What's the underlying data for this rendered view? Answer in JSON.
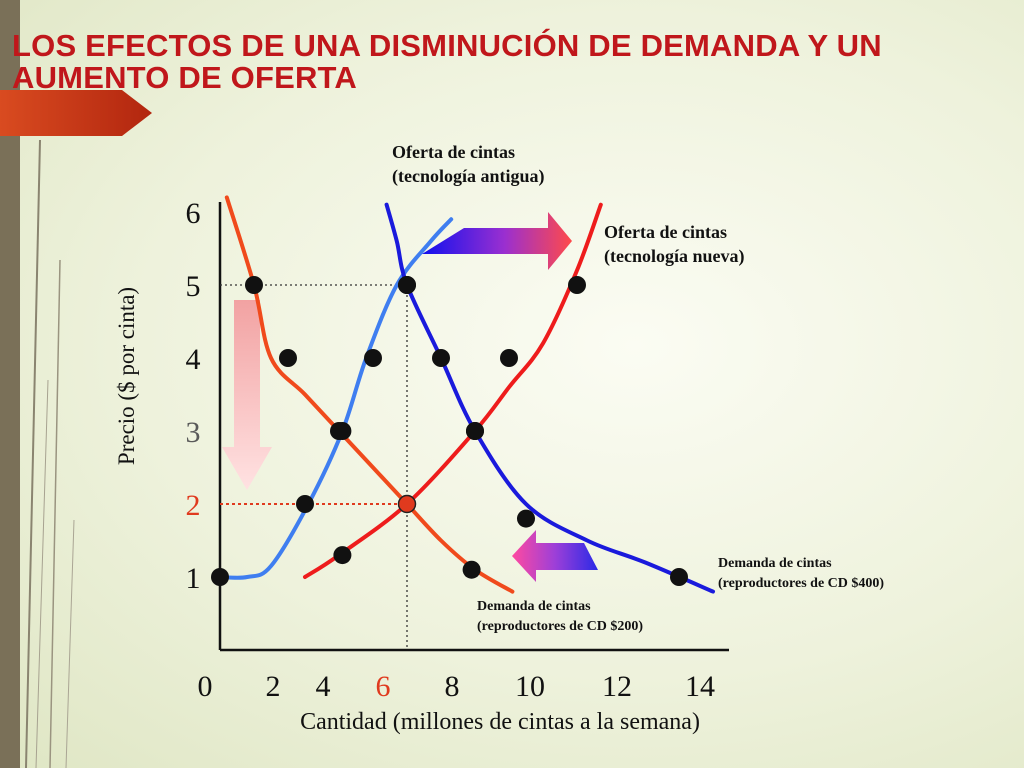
{
  "slide": {
    "title": "LOS EFECTOS DE UNA DISMINUCIÓN DE DEMANDA Y UN AUMENTO DE OFERTA"
  },
  "colors": {
    "title": "#c0171b",
    "frame": "#7a7058",
    "supply_old": "#3f7ef0",
    "supply_new": "#ee1c1c",
    "demand_old": "#1a1adc",
    "demand_new": "#f04a1c",
    "highlight": "#e03a1e",
    "points": "#111111"
  },
  "chart_data": {
    "type": "line",
    "xlabel": "Cantidad (millones de cintas a la semana)",
    "ylabel": "Precio ($ por cinta)",
    "x_ticks": [
      "0",
      "2",
      "4",
      "6",
      "8",
      "10",
      "12",
      "14"
    ],
    "y_ticks": [
      "1",
      "2",
      "3",
      "4",
      "5",
      "6"
    ],
    "highlight_x_tick": "6",
    "highlight_y_tick": "2",
    "muted_y_tick": "3",
    "xlim": [
      0,
      14
    ],
    "ylim": [
      0,
      6
    ],
    "series": [
      {
        "name": "Oferta de cintas (tecnología antigua)",
        "label_lines": [
          "Oferta de cintas",
          "(tecnología antigua)"
        ],
        "color": "#3f7ef0",
        "x": [
          0,
          0.8,
          1.5,
          2.6,
          3.6,
          4.3,
          5.2,
          6.2,
          6.8
        ],
        "y": [
          1,
          1,
          1.15,
          2,
          3,
          4,
          5,
          5.6,
          5.9
        ],
        "points_x": [
          0,
          2.5,
          3.6,
          4.5,
          5.5
        ],
        "points_y": [
          1,
          2,
          3,
          4,
          5
        ]
      },
      {
        "name": "Oferta de cintas (tecnología nueva)",
        "label_lines": [
          "Oferta de cintas",
          "(tecnología nueva)"
        ],
        "color": "#ee1c1c",
        "x": [
          2.5,
          3.5,
          5.5,
          7.5,
          8.5,
          9.5,
          10.5,
          11.2
        ],
        "y": [
          1,
          1.3,
          2,
          3,
          3.6,
          4.2,
          5.2,
          6.1
        ],
        "points_x": [
          3.6,
          5.5,
          7.5,
          8.5,
          10.5
        ],
        "points_y": [
          1.3,
          2,
          3,
          4,
          5
        ]
      },
      {
        "name": "Demanda de cintas (reproductores de CD $400)",
        "label_lines": [
          "Demanda de cintas",
          "(reproductores de CD $400)"
        ],
        "color": "#1a1adc",
        "x": [
          4.9,
          5.2,
          5.5,
          6.5,
          7.5,
          9,
          10.8,
          12.5,
          14.5
        ],
        "y": [
          6.1,
          5.6,
          5,
          4,
          3,
          2,
          1.5,
          1.2,
          0.8
        ],
        "points_x": [
          5.5,
          6.5,
          7.5,
          9,
          13.5
        ],
        "points_y": [
          5,
          4,
          3,
          1.8,
          1
        ]
      },
      {
        "name": "Demanda de cintas (reproductores de CD $200)",
        "label_lines": [
          "Demanda de cintas",
          "(reproductores de CD $200)"
        ],
        "color": "#f04a1c",
        "x": [
          0.2,
          1,
          1.5,
          2.5,
          3.5,
          4.5,
          5.5,
          6.5,
          7.5,
          8.6
        ],
        "y": [
          6.2,
          5,
          4,
          3.5,
          3,
          2.5,
          2,
          1.5,
          1.1,
          0.8
        ],
        "points_x": [
          1,
          2,
          3.5,
          7.4
        ],
        "points_y": [
          5,
          4,
          3,
          1.1
        ]
      }
    ],
    "reference_lines": [
      {
        "style": "black-dotted",
        "from": [
          0,
          5
        ],
        "to": [
          5.5,
          5
        ]
      },
      {
        "style": "black-dotted",
        "from": [
          5.5,
          5
        ],
        "to": [
          5.5,
          0
        ]
      },
      {
        "style": "red-dotted",
        "from": [
          0,
          2
        ],
        "to": [
          5.5,
          2
        ]
      }
    ],
    "equilibrium_point": {
      "x": 5.5,
      "y": 2
    },
    "arrows": [
      {
        "meaning": "aumento de oferta",
        "direction": "right",
        "colors": [
          "#1010ee",
          "#ff5050"
        ]
      },
      {
        "meaning": "disminución de demanda",
        "direction": "left",
        "colors": [
          "#ff4aa0",
          "#2a2ae6"
        ]
      },
      {
        "meaning": "baja del precio",
        "direction": "down",
        "colors": [
          "#f4a8a8",
          "#ffe0e0"
        ]
      }
    ]
  }
}
